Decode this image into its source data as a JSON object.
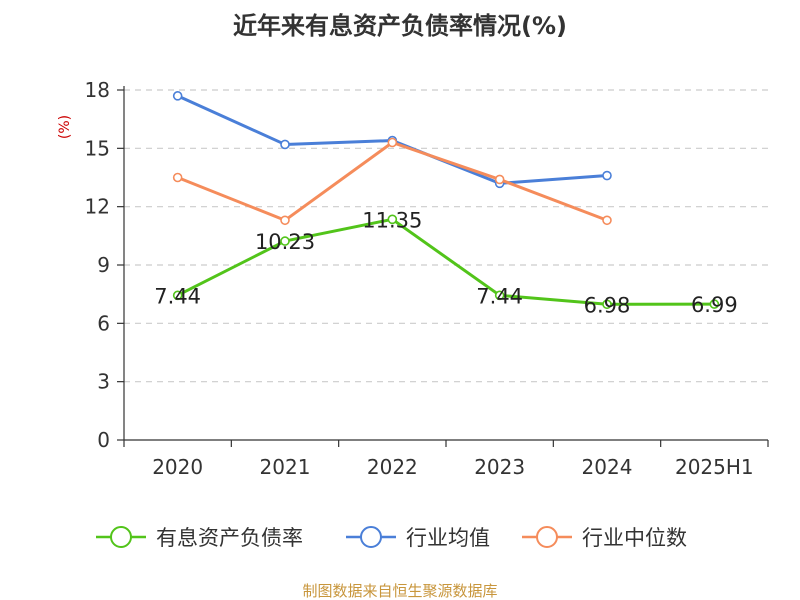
{
  "chart_data": {
    "type": "line",
    "title": "近年来有息资产负债率情况(%)",
    "unit_label": "(%)",
    "categories": [
      "2020",
      "2021",
      "2022",
      "2023",
      "2024",
      "2025H1"
    ],
    "y_ticks": [
      "0",
      "3",
      "6",
      "9",
      "12",
      "15",
      "18"
    ],
    "ylim": [
      0,
      18
    ],
    "grid": true,
    "legend_position": "bottom",
    "series": [
      {
        "name": "有息资产负债率",
        "color": "#52c41a",
        "values": [
          7.44,
          10.23,
          11.35,
          7.44,
          6.98,
          6.99
        ],
        "labels": [
          "7.44",
          "10.23",
          "11.35",
          "7.44",
          "6.98",
          "6.99"
        ]
      },
      {
        "name": "行业均值",
        "color": "#4a7fd8",
        "values": [
          17.7,
          15.2,
          15.4,
          13.2,
          13.6,
          null
        ]
      },
      {
        "name": "行业中位数",
        "color": "#f58c5b",
        "values": [
          13.5,
          11.3,
          15.3,
          13.4,
          11.3,
          null
        ]
      }
    ],
    "source": "制图数据来自恒生聚源数据库"
  }
}
